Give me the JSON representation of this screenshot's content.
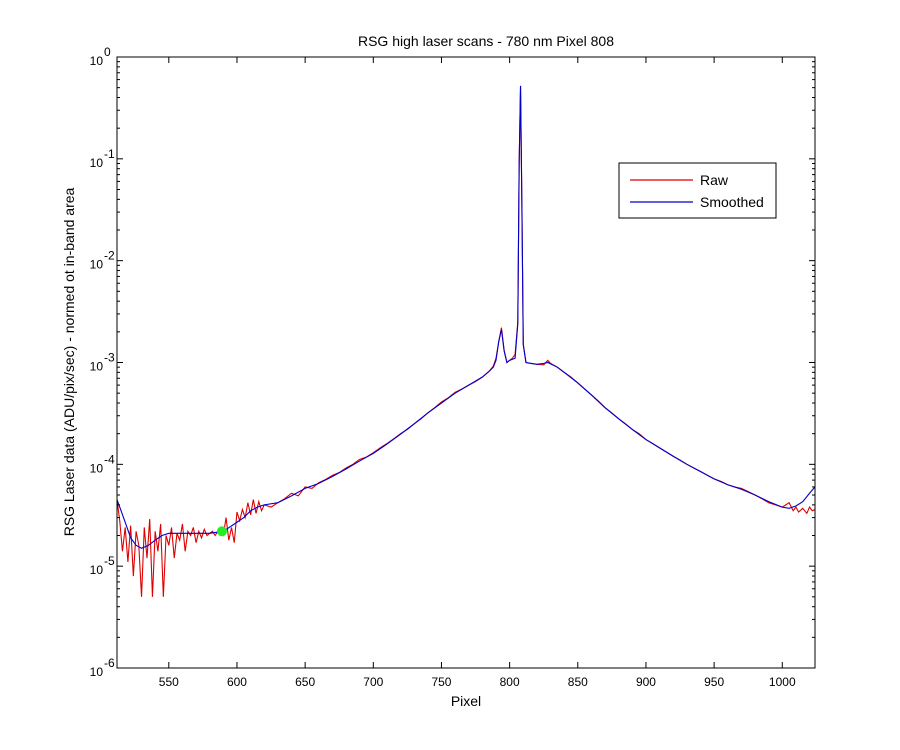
{
  "chart_data": {
    "type": "line",
    "title": "RSG high laser scans  - 780 nm    Pixel 808",
    "xlabel": "Pixel",
    "ylabel": "RSG Laser data (ADU/pix/sec) - normed ot in-band area",
    "xlim": [
      512,
      1024
    ],
    "ylim": [
      1e-06,
      1
    ],
    "yscale": "log",
    "grid": false,
    "legend_position": "top-right",
    "x_ticks": [
      550,
      600,
      650,
      700,
      750,
      800,
      850,
      900,
      950,
      1000
    ],
    "y_ticks": [
      {
        "value": 1e-06,
        "base": "10",
        "exp": "-6"
      },
      {
        "value": 1e-05,
        "base": "10",
        "exp": "-5"
      },
      {
        "value": 0.0001,
        "base": "10",
        "exp": "-4"
      },
      {
        "value": 0.001,
        "base": "10",
        "exp": "-3"
      },
      {
        "value": 0.01,
        "base": "10",
        "exp": "-2"
      },
      {
        "value": 0.1,
        "base": "10",
        "exp": "-1"
      },
      {
        "value": 1,
        "base": "10",
        "exp": "0"
      }
    ],
    "series": [
      {
        "name": "Raw",
        "color": "#dd0000",
        "points": [
          [
            512,
            4.5e-05
          ],
          [
            514,
            2.8e-05
          ],
          [
            516,
            1.4e-05
          ],
          [
            518,
            2.4e-05
          ],
          [
            520,
            1.1e-05
          ],
          [
            522,
            2.5e-05
          ],
          [
            524,
            8e-06
          ],
          [
            526,
            2.2e-05
          ],
          [
            528,
            1.6e-05
          ],
          [
            530,
            5e-06
          ],
          [
            532,
            2.4e-05
          ],
          [
            534,
            1.2e-05
          ],
          [
            536,
            2.9e-05
          ],
          [
            538,
            5e-06
          ],
          [
            540,
            2.2e-05
          ],
          [
            542,
            1.4e-05
          ],
          [
            544,
            2.6e-05
          ],
          [
            546,
            5e-06
          ],
          [
            548,
            2e-05
          ],
          [
            550,
            1.6e-05
          ],
          [
            552,
            2.4e-05
          ],
          [
            554,
            1.2e-05
          ],
          [
            556,
            2.1e-05
          ],
          [
            558,
            1.8e-05
          ],
          [
            560,
            2.6e-05
          ],
          [
            562,
            1.4e-05
          ],
          [
            564,
            2.2e-05
          ],
          [
            566,
            2e-05
          ],
          [
            568,
            2.4e-05
          ],
          [
            570,
            1.7e-05
          ],
          [
            572,
            2.2e-05
          ],
          [
            574,
            1.9e-05
          ],
          [
            576,
            2.3e-05
          ],
          [
            578,
            2e-05
          ],
          [
            580,
            2.1e-05
          ],
          [
            582,
            2.2e-05
          ],
          [
            584,
            2e-05
          ],
          [
            586,
            2.2e-05
          ],
          [
            588,
            2.1e-05
          ],
          [
            590,
            2e-05
          ],
          [
            592,
            3e-05
          ],
          [
            594,
            1.8e-05
          ],
          [
            596,
            2.4e-05
          ],
          [
            598,
            1.7e-05
          ],
          [
            600,
            3.4e-05
          ],
          [
            602,
            2.8e-05
          ],
          [
            604,
            3.6e-05
          ],
          [
            606,
            3e-05
          ],
          [
            608,
            4.2e-05
          ],
          [
            610,
            3.2e-05
          ],
          [
            612,
            4.5e-05
          ],
          [
            614,
            3.3e-05
          ],
          [
            616,
            4.3e-05
          ],
          [
            618,
            3.5e-05
          ],
          [
            620,
            4e-05
          ],
          [
            625,
            3.8e-05
          ],
          [
            630,
            4.2e-05
          ],
          [
            635,
            4.6e-05
          ],
          [
            640,
            5.2e-05
          ],
          [
            645,
            4.9e-05
          ],
          [
            650,
            6e-05
          ],
          [
            655,
            5.8e-05
          ],
          [
            660,
            6.6e-05
          ],
          [
            665,
            7.1e-05
          ],
          [
            670,
            7.8e-05
          ],
          [
            675,
            8.3e-05
          ],
          [
            680,
            9.2e-05
          ],
          [
            685,
            0.0001
          ],
          [
            690,
            0.000112
          ],
          [
            695,
            0.000118
          ],
          [
            700,
            0.00013
          ],
          [
            705,
            0.000145
          ],
          [
            710,
            0.00016
          ],
          [
            715,
            0.000178
          ],
          [
            720,
            0.0002
          ],
          [
            725,
            0.00022
          ],
          [
            730,
            0.00025
          ],
          [
            735,
            0.00028
          ],
          [
            740,
            0.00032
          ],
          [
            745,
            0.00036
          ],
          [
            750,
            0.00041
          ],
          [
            755,
            0.00045
          ],
          [
            760,
            0.00051
          ],
          [
            765,
            0.00055
          ],
          [
            770,
            0.0006
          ],
          [
            775,
            0.00065
          ],
          [
            780,
            0.00072
          ],
          [
            785,
            0.00082
          ],
          [
            788,
            0.00092
          ],
          [
            790,
            0.0011
          ],
          [
            792,
            0.0016
          ],
          [
            794,
            0.0022
          ],
          [
            796,
            0.0013
          ],
          [
            798,
            0.001
          ],
          [
            800,
            0.00105
          ],
          [
            802,
            0.0011
          ],
          [
            804,
            0.0012
          ],
          [
            806,
            0.0025
          ],
          [
            807,
            0.09
          ],
          [
            808,
            0.52
          ],
          [
            809,
            0.035
          ],
          [
            810,
            0.0015
          ],
          [
            812,
            0.001
          ],
          [
            815,
            0.00098
          ],
          [
            820,
            0.00096
          ],
          [
            825,
            0.00095
          ],
          [
            828,
            0.00105
          ],
          [
            830,
            0.00098
          ],
          [
            835,
            0.0009
          ],
          [
            840,
            0.0008
          ],
          [
            845,
            0.00072
          ],
          [
            850,
            0.00063
          ],
          [
            855,
            0.00055
          ],
          [
            860,
            0.00048
          ],
          [
            865,
            0.00042
          ],
          [
            870,
            0.00036
          ],
          [
            875,
            0.00032
          ],
          [
            880,
            0.00028
          ],
          [
            885,
            0.00025
          ],
          [
            890,
            0.00022
          ],
          [
            895,
            0.0002
          ],
          [
            900,
            0.000175
          ],
          [
            905,
            0.00016
          ],
          [
            910,
            0.000145
          ],
          [
            915,
            0.000132
          ],
          [
            920,
            0.00012
          ],
          [
            925,
            0.00011
          ],
          [
            930,
            0.0001
          ],
          [
            935,
            9.2e-05
          ],
          [
            940,
            8.5e-05
          ],
          [
            945,
            7.8e-05
          ],
          [
            950,
            7.2e-05
          ],
          [
            955,
            6.8e-05
          ],
          [
            960,
            6.3e-05
          ],
          [
            965,
            6e-05
          ],
          [
            970,
            5.8e-05
          ],
          [
            975,
            5.4e-05
          ],
          [
            980,
            5e-05
          ],
          [
            985,
            4.6e-05
          ],
          [
            990,
            4.2e-05
          ],
          [
            995,
            4e-05
          ],
          [
            1000,
            3.8e-05
          ],
          [
            1005,
            4.2e-05
          ],
          [
            1008,
            3.5e-05
          ],
          [
            1010,
            3.8e-05
          ],
          [
            1012,
            3.4e-05
          ],
          [
            1015,
            3.7e-05
          ],
          [
            1018,
            3.3e-05
          ],
          [
            1020,
            3.8e-05
          ],
          [
            1022,
            3.5e-05
          ],
          [
            1024,
            3.6e-05
          ]
        ]
      },
      {
        "name": "Smoothed",
        "color": "#0000cc",
        "points": [
          [
            512,
            4.5e-05
          ],
          [
            515,
            3.5e-05
          ],
          [
            518,
            2.7e-05
          ],
          [
            522,
            1.9e-05
          ],
          [
            526,
            1.6e-05
          ],
          [
            530,
            1.5e-05
          ],
          [
            535,
            1.6e-05
          ],
          [
            540,
            1.8e-05
          ],
          [
            545,
            2e-05
          ],
          [
            550,
            2.1e-05
          ],
          [
            560,
            2.1e-05
          ],
          [
            570,
            2.1e-05
          ],
          [
            580,
            2.1e-05
          ],
          [
            590,
            2.2e-05
          ],
          [
            600,
            2.7e-05
          ],
          [
            605,
            3e-05
          ],
          [
            610,
            3.5e-05
          ],
          [
            615,
            3.8e-05
          ],
          [
            620,
            4e-05
          ],
          [
            630,
            4.2e-05
          ],
          [
            640,
            4.9e-05
          ],
          [
            650,
            5.8e-05
          ],
          [
            660,
            6.5e-05
          ],
          [
            670,
            7.6e-05
          ],
          [
            680,
            9e-05
          ],
          [
            690,
            0.000108
          ],
          [
            700,
            0.000128
          ],
          [
            710,
            0.000158
          ],
          [
            720,
            0.000198
          ],
          [
            730,
            0.00025
          ],
          [
            740,
            0.00032
          ],
          [
            750,
            0.0004
          ],
          [
            760,
            0.0005
          ],
          [
            770,
            0.0006
          ],
          [
            780,
            0.00072
          ],
          [
            785,
            0.00082
          ],
          [
            788,
            0.0009
          ],
          [
            790,
            0.00105
          ],
          [
            792,
            0.0016
          ],
          [
            794,
            0.0021
          ],
          [
            796,
            0.0013
          ],
          [
            798,
            0.001
          ],
          [
            800,
            0.00105
          ],
          [
            804,
            0.0011
          ],
          [
            806,
            0.0024
          ],
          [
            807,
            0.09
          ],
          [
            808,
            0.52
          ],
          [
            809,
            0.035
          ],
          [
            810,
            0.0015
          ],
          [
            812,
            0.001
          ],
          [
            820,
            0.00096
          ],
          [
            825,
            0.00098
          ],
          [
            828,
            0.001
          ],
          [
            835,
            0.0009
          ],
          [
            840,
            0.0008
          ],
          [
            850,
            0.00063
          ],
          [
            860,
            0.00048
          ],
          [
            870,
            0.00036
          ],
          [
            880,
            0.00028
          ],
          [
            890,
            0.00022
          ],
          [
            900,
            0.000175
          ],
          [
            910,
            0.000145
          ],
          [
            920,
            0.00012
          ],
          [
            930,
            0.0001
          ],
          [
            940,
            8.5e-05
          ],
          [
            950,
            7.2e-05
          ],
          [
            960,
            6.3e-05
          ],
          [
            970,
            5.7e-05
          ],
          [
            980,
            5e-05
          ],
          [
            990,
            4.3e-05
          ],
          [
            1000,
            3.8e-05
          ],
          [
            1005,
            3.7e-05
          ],
          [
            1010,
            3.9e-05
          ],
          [
            1015,
            4.3e-05
          ],
          [
            1020,
            5.2e-05
          ],
          [
            1024,
            6e-05
          ]
        ]
      }
    ],
    "marker": {
      "x": 589,
      "y": 2.2e-05,
      "color": "#22ee22"
    }
  }
}
